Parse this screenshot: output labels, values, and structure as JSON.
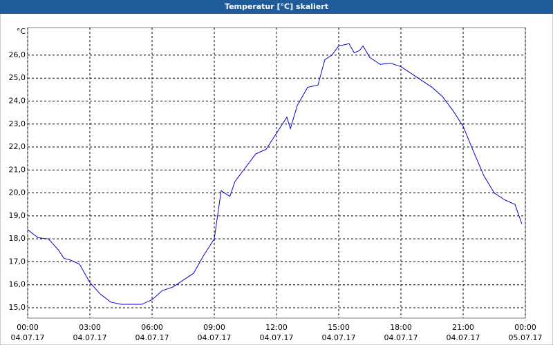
{
  "chart_data": {
    "type": "line",
    "title": "Temperatur [°C] skaliert",
    "y_label": "°C",
    "x": [
      0,
      0.5,
      1,
      1.5,
      1.75,
      2,
      2.5,
      3,
      3.5,
      4,
      4.5,
      5,
      5.5,
      6,
      6.5,
      7,
      7.5,
      8,
      8.5,
      9,
      9.33,
      9.75,
      10,
      10.5,
      11,
      11.5,
      12,
      12.5,
      12.67,
      13,
      13.5,
      14,
      14.33,
      14.67,
      15,
      15.5,
      15.75,
      16,
      16.17,
      16.5,
      17,
      17.5,
      18,
      18.5,
      19,
      19.5,
      20,
      20.5,
      21,
      21.5,
      22,
      22.5,
      23,
      23.5,
      23.83
    ],
    "series": [
      {
        "name": "Temperatur",
        "color": "#0000cc",
        "values": [
          18.4,
          18.05,
          18.0,
          17.5,
          17.15,
          17.1,
          16.9,
          16.1,
          15.6,
          15.25,
          15.15,
          15.15,
          15.15,
          15.35,
          15.75,
          15.9,
          16.2,
          16.5,
          17.3,
          18.0,
          20.1,
          19.85,
          20.5,
          21.1,
          21.7,
          21.9,
          22.6,
          23.3,
          22.8,
          23.8,
          24.6,
          24.7,
          25.8,
          26.0,
          26.4,
          26.5,
          26.1,
          26.2,
          26.4,
          25.9,
          25.6,
          25.65,
          25.5,
          25.2,
          24.9,
          24.6,
          24.2,
          23.6,
          22.9,
          21.8,
          20.75,
          20.0,
          19.7,
          19.5,
          18.65
        ]
      }
    ],
    "xlim": [
      0,
      24
    ],
    "xticks": [
      {
        "value": 0,
        "label": "00:00"
      },
      {
        "value": 3,
        "label": "03:00"
      },
      {
        "value": 6,
        "label": "06:00"
      },
      {
        "value": 9,
        "label": "09:00"
      },
      {
        "value": 12,
        "label": "12:00"
      },
      {
        "value": 15,
        "label": "15:00"
      },
      {
        "value": 18,
        "label": "18:00"
      },
      {
        "value": 21,
        "label": "21:00"
      },
      {
        "value": 24,
        "label": "00:00"
      }
    ],
    "xtick_dates": [
      "04.07.17",
      "04.07.17",
      "04.07.17",
      "04.07.17",
      "04.07.17",
      "04.07.17",
      "04.07.17",
      "04.07.17",
      "05.07.17"
    ],
    "ylim": [
      14.55,
      27.2
    ],
    "yticks": [
      {
        "value": 15,
        "label": "15,0"
      },
      {
        "value": 16,
        "label": "16,0"
      },
      {
        "value": 17,
        "label": "17,0"
      },
      {
        "value": 18,
        "label": "18,0"
      },
      {
        "value": 19,
        "label": "19,0"
      },
      {
        "value": 20,
        "label": "20,0"
      },
      {
        "value": 21,
        "label": "21,0"
      },
      {
        "value": 22,
        "label": "22,0"
      },
      {
        "value": 23,
        "label": "23,0"
      },
      {
        "value": 24,
        "label": "24,0"
      },
      {
        "value": 25,
        "label": "25,0"
      },
      {
        "value": 26,
        "label": "26,0"
      }
    ],
    "grid": true
  }
}
